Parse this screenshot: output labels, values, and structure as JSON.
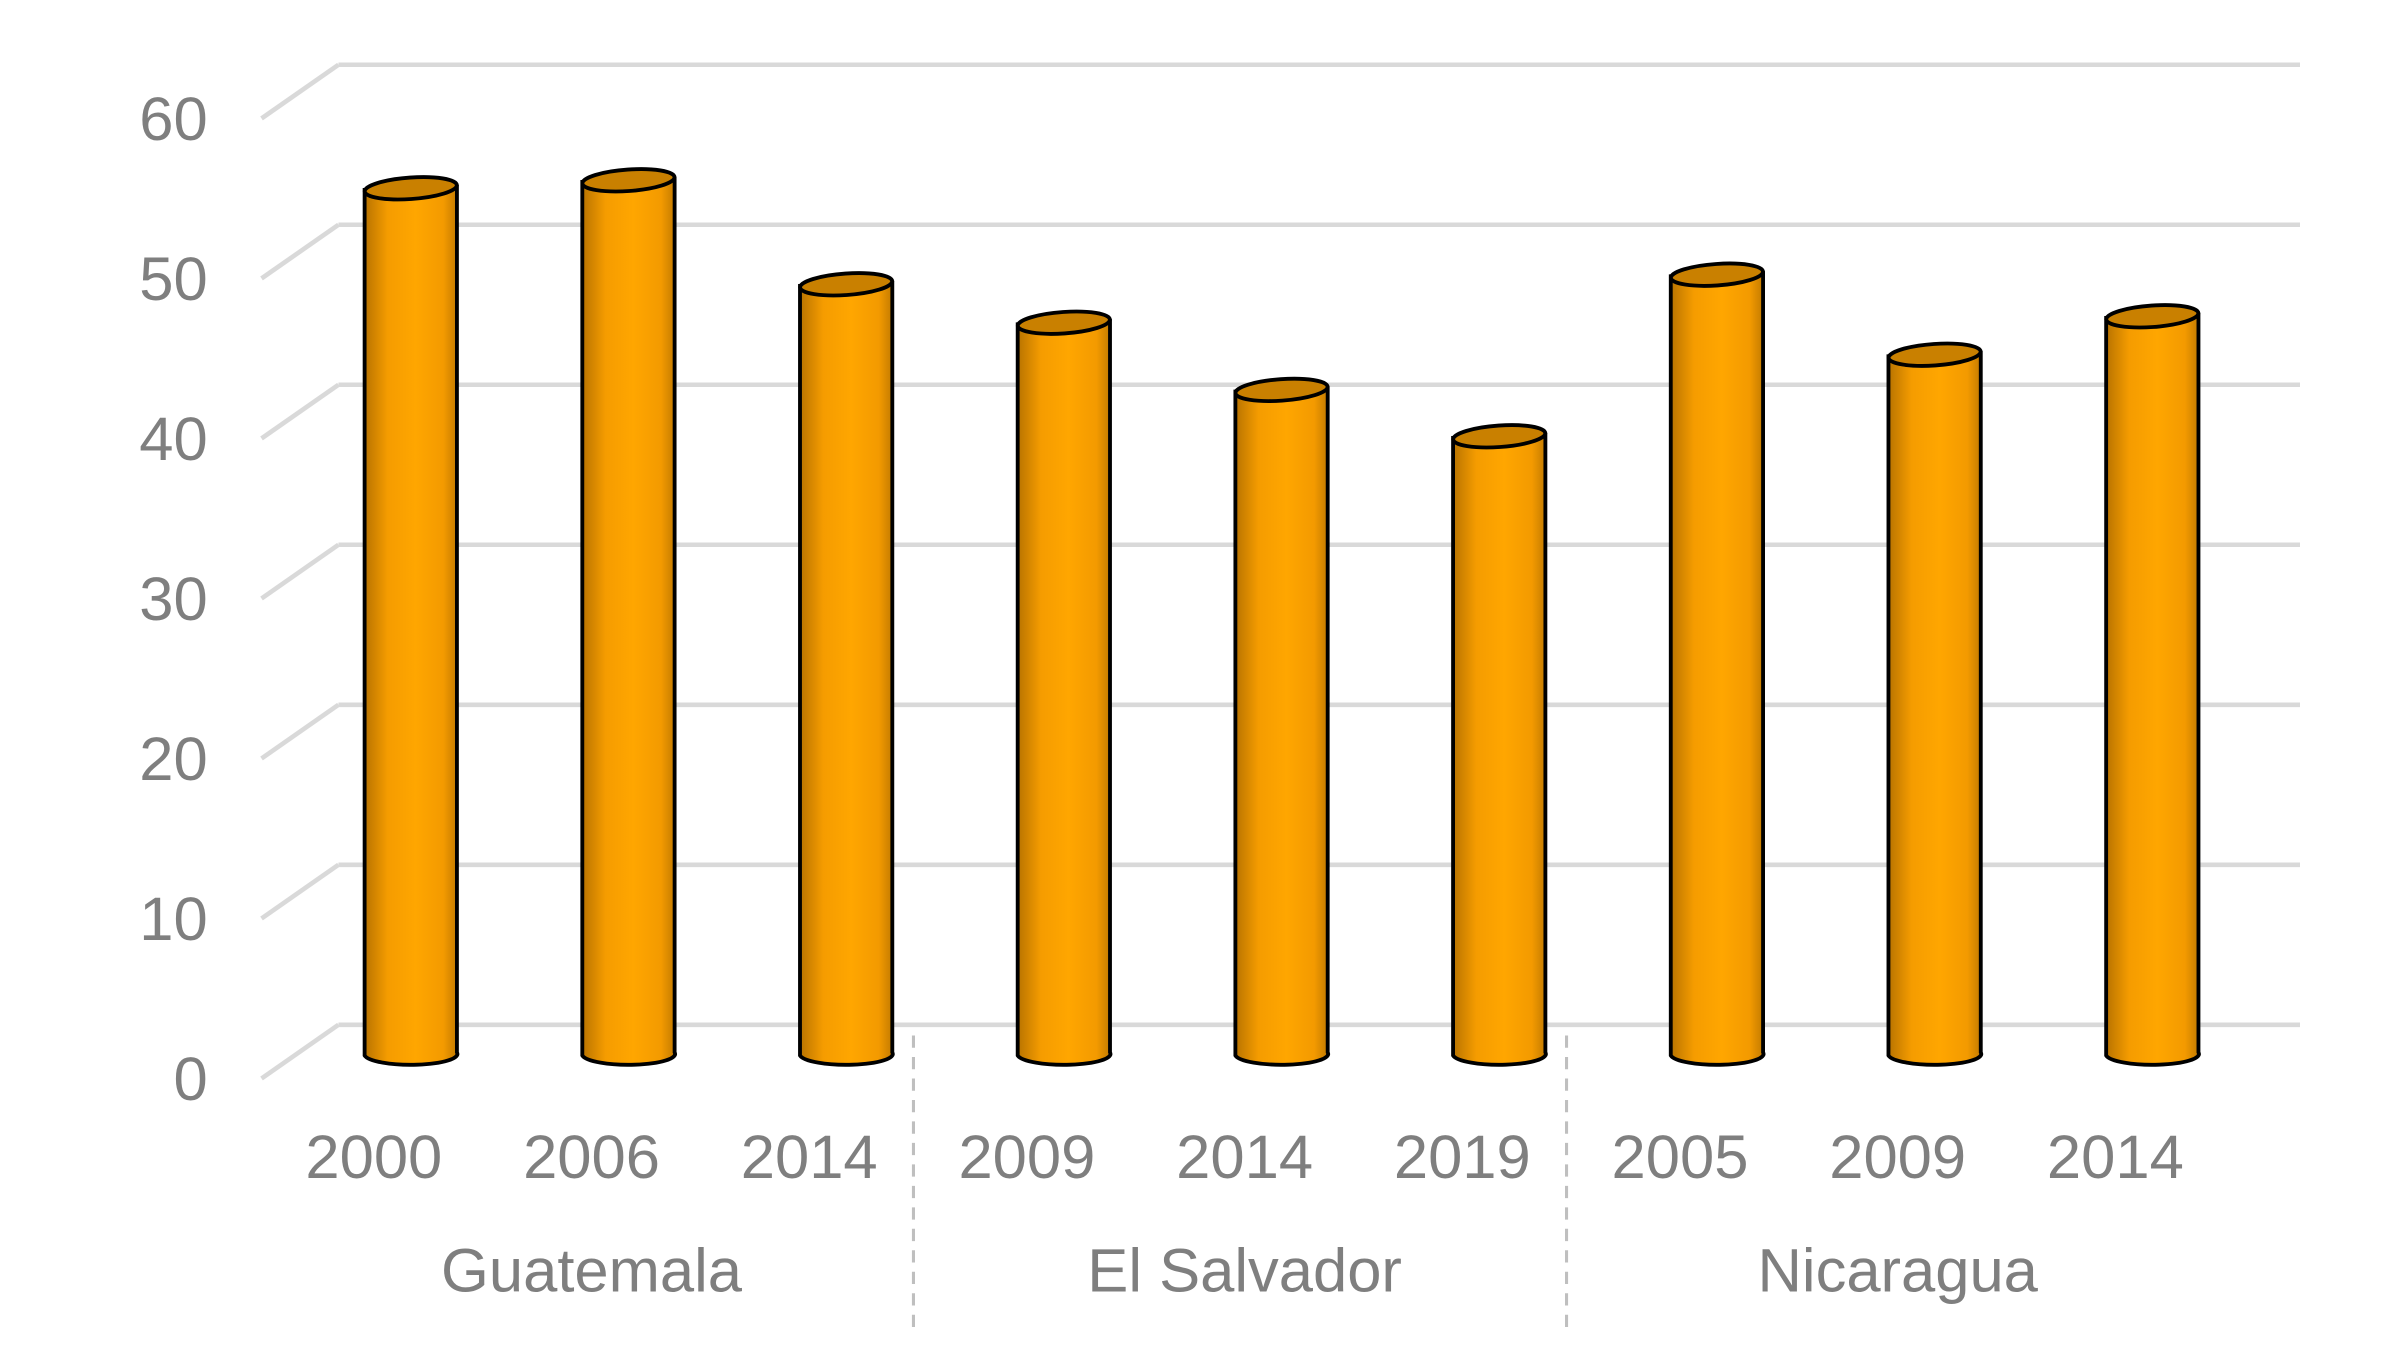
{
  "chart_data": {
    "type": "bar",
    "style": "3d-cylinder",
    "title": "",
    "xlabel": "",
    "ylabel": "",
    "ylim": [
      0,
      60
    ],
    "yticks": [
      "0",
      "10",
      "20",
      "30",
      "40",
      "50",
      "60"
    ],
    "grid": true,
    "groups": [
      {
        "name": "Guatemala",
        "categories": [
          "2000",
          "2006",
          "2014"
        ],
        "values": [
          54.1,
          54.6,
          48.1
        ]
      },
      {
        "name": "El Salvador",
        "categories": [
          "2009",
          "2014",
          "2019"
        ],
        "values": [
          45.7,
          41.5,
          38.6
        ]
      },
      {
        "name": "Nicaragua",
        "categories": [
          "2005",
          "2009",
          "2014"
        ],
        "values": [
          48.7,
          43.7,
          46.1
        ]
      }
    ],
    "colors": {
      "bar": "#ffa500",
      "bar_edge": "#c27a00",
      "outline": "#000000",
      "grid": "#d9d9d9",
      "text": "#7f7f7f"
    }
  }
}
